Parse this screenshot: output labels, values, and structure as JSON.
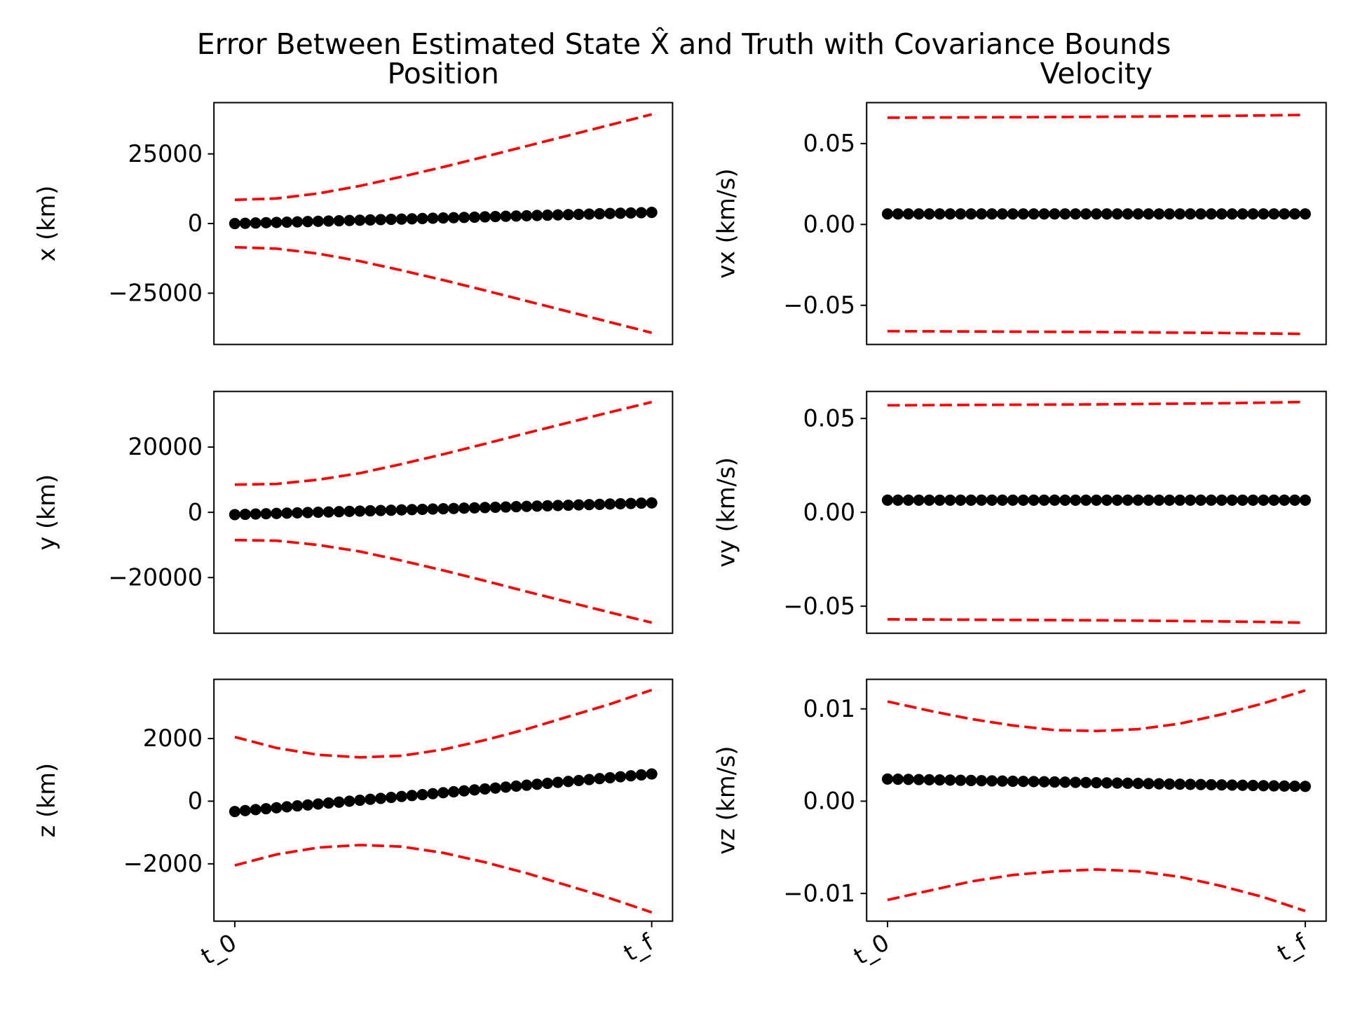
{
  "title": "Error Between Estimated State X̂  and Truth with Covariance Bounds",
  "chart_data": [
    {
      "type": "line",
      "title": "Position",
      "ylabel": "x (km)",
      "xlim": [
        -0.05,
        1.05
      ],
      "ylim": [
        -43400,
        43400
      ],
      "yticks": [
        {
          "value": -25000,
          "label": "−25000"
        },
        0,
        25000
      ],
      "series": [
        {
          "color": "#ff0000",
          "linestyle": "dashed",
          "x": [
            0,
            0.1,
            0.2,
            0.3,
            0.4,
            0.5,
            0.6,
            0.7,
            0.8,
            0.9,
            1
          ],
          "values": [
            8500,
            9000,
            10800,
            13500,
            16800,
            20300,
            24000,
            27800,
            31600,
            35400,
            39200
          ]
        },
        {
          "color": "#ff0000",
          "linestyle": "dashed",
          "x": [
            0,
            0.1,
            0.2,
            0.3,
            0.4,
            0.5,
            0.6,
            0.7,
            0.8,
            0.9,
            1
          ],
          "values": [
            -8500,
            -9000,
            -10800,
            -13500,
            -16800,
            -20300,
            -24000,
            -27800,
            -31600,
            -35400,
            -39200
          ]
        },
        {
          "color": "#000000",
          "marker": "o",
          "x": [
            0,
            0.025,
            0.05,
            0.075,
            0.1,
            0.125,
            0.15,
            0.175,
            0.2,
            0.225,
            0.25,
            0.275,
            0.3,
            0.325,
            0.35,
            0.375,
            0.4,
            0.425,
            0.45,
            0.475,
            0.5,
            0.525,
            0.55,
            0.575,
            0.6,
            0.625,
            0.65,
            0.675,
            0.7,
            0.725,
            0.75,
            0.775,
            0.8,
            0.825,
            0.85,
            0.875,
            0.9,
            0.925,
            0.95,
            0.975,
            1
          ],
          "values": [
            0,
            100,
            200,
            300,
            400,
            500,
            600,
            700,
            800,
            900,
            1000,
            1100,
            1200,
            1300,
            1400,
            1500,
            1600,
            1700,
            1800,
            1900,
            2000,
            2100,
            2200,
            2300,
            2400,
            2500,
            2600,
            2700,
            2800,
            2900,
            3000,
            3100,
            3200,
            3300,
            3400,
            3500,
            3600,
            3700,
            3800,
            3900,
            4000
          ]
        }
      ]
    },
    {
      "type": "line",
      "title": "Velocity",
      "ylabel": "vx (km/s)",
      "xlim": [
        -0.05,
        1.05
      ],
      "ylim": [
        -0.0742,
        0.0753
      ],
      "yticks": [
        {
          "value": -0.05,
          "label": "−0.05"
        },
        {
          "value": 0,
          "label": "0.00"
        },
        0.05
      ],
      "series": [
        {
          "color": "#ff0000",
          "linestyle": "dashed",
          "x": [
            0,
            0.1,
            0.2,
            0.3,
            0.4,
            0.5,
            0.6,
            0.7,
            0.8,
            0.9,
            1
          ],
          "values": [
            0.066,
            0.0661,
            0.0662,
            0.0663,
            0.0664,
            0.0665,
            0.0667,
            0.0669,
            0.0671,
            0.0674,
            0.0677
          ]
        },
        {
          "color": "#ff0000",
          "linestyle": "dashed",
          "x": [
            0,
            0.1,
            0.2,
            0.3,
            0.4,
            0.5,
            0.6,
            0.7,
            0.8,
            0.9,
            1
          ],
          "values": [
            -0.066,
            -0.0661,
            -0.0662,
            -0.0663,
            -0.0664,
            -0.0665,
            -0.0667,
            -0.0669,
            -0.0671,
            -0.0674,
            -0.0677
          ]
        },
        {
          "color": "#000000",
          "marker": "o",
          "x": [
            0,
            0.025,
            0.05,
            0.075,
            0.1,
            0.125,
            0.15,
            0.175,
            0.2,
            0.225,
            0.25,
            0.275,
            0.3,
            0.325,
            0.35,
            0.375,
            0.4,
            0.425,
            0.45,
            0.475,
            0.5,
            0.525,
            0.55,
            0.575,
            0.6,
            0.625,
            0.65,
            0.675,
            0.7,
            0.725,
            0.75,
            0.775,
            0.8,
            0.825,
            0.85,
            0.875,
            0.9,
            0.925,
            0.95,
            0.975,
            1
          ],
          "values": [
            0.0065,
            0.0065,
            0.0065,
            0.0065,
            0.0065,
            0.0065,
            0.0065,
            0.0065,
            0.0065,
            0.0065,
            0.0065,
            0.0065,
            0.0065,
            0.0065,
            0.0065,
            0.0065,
            0.0065,
            0.0065,
            0.0065,
            0.0065,
            0.0065,
            0.0065,
            0.0065,
            0.0065,
            0.0065,
            0.0065,
            0.0065,
            0.0065,
            0.0065,
            0.0065,
            0.0065,
            0.0065,
            0.0065,
            0.0065,
            0.0065,
            0.0065,
            0.0065,
            0.0065,
            0.0065,
            0.0065,
            0.0065
          ]
        }
      ]
    },
    {
      "type": "line",
      "ylabel": "y (km)",
      "xlim": [
        -0.05,
        1.05
      ],
      "ylim": [
        -37070,
        37070
      ],
      "yticks": [
        {
          "value": -20000,
          "label": "−20000"
        },
        0,
        20000
      ],
      "series": [
        {
          "color": "#ff0000",
          "linestyle": "dashed",
          "x": [
            0,
            0.1,
            0.2,
            0.3,
            0.4,
            0.5,
            0.6,
            0.7,
            0.8,
            0.9,
            1
          ],
          "values": [
            8500,
            8700,
            10000,
            12000,
            14800,
            17800,
            21000,
            24300,
            27500,
            30700,
            33800
          ]
        },
        {
          "color": "#ff0000",
          "linestyle": "dashed",
          "x": [
            0,
            0.1,
            0.2,
            0.3,
            0.4,
            0.5,
            0.6,
            0.7,
            0.8,
            0.9,
            1
          ],
          "values": [
            -8500,
            -8700,
            -10000,
            -12000,
            -14800,
            -17800,
            -21000,
            -24300,
            -27500,
            -30700,
            -33800
          ]
        },
        {
          "color": "#000000",
          "marker": "o",
          "x": [
            0,
            0.025,
            0.05,
            0.075,
            0.1,
            0.125,
            0.15,
            0.175,
            0.2,
            0.225,
            0.25,
            0.275,
            0.3,
            0.325,
            0.35,
            0.375,
            0.4,
            0.425,
            0.45,
            0.475,
            0.5,
            0.525,
            0.55,
            0.575,
            0.6,
            0.625,
            0.65,
            0.675,
            0.7,
            0.725,
            0.75,
            0.775,
            0.8,
            0.825,
            0.85,
            0.875,
            0.9,
            0.925,
            0.95,
            0.975,
            1
          ],
          "values": [
            -700,
            -610,
            -520,
            -430,
            -340,
            -250,
            -160,
            -70,
            20,
            110,
            200,
            290,
            380,
            470,
            560,
            650,
            740,
            830,
            920,
            1010,
            1100,
            1190,
            1280,
            1370,
            1460,
            1550,
            1640,
            1730,
            1820,
            1910,
            2000,
            2090,
            2180,
            2270,
            2360,
            2450,
            2540,
            2630,
            2720,
            2810,
            2900
          ]
        }
      ]
    },
    {
      "type": "line",
      "ylabel": "vy (km/s)",
      "xlim": [
        -0.05,
        1.05
      ],
      "ylim": [
        -0.0644,
        0.0644
      ],
      "yticks": [
        {
          "value": -0.05,
          "label": "−0.05"
        },
        {
          "value": 0,
          "label": "0.00"
        },
        0.05
      ],
      "series": [
        {
          "color": "#ff0000",
          "linestyle": "dashed",
          "x": [
            0,
            0.1,
            0.2,
            0.3,
            0.4,
            0.5,
            0.6,
            0.7,
            0.8,
            0.9,
            1
          ],
          "values": [
            0.057,
            0.0571,
            0.0572,
            0.0573,
            0.0574,
            0.0575,
            0.0577,
            0.0579,
            0.0581,
            0.0584,
            0.0588
          ]
        },
        {
          "color": "#ff0000",
          "linestyle": "dashed",
          "x": [
            0,
            0.1,
            0.2,
            0.3,
            0.4,
            0.5,
            0.6,
            0.7,
            0.8,
            0.9,
            1
          ],
          "values": [
            -0.057,
            -0.0571,
            -0.0572,
            -0.0573,
            -0.0574,
            -0.0575,
            -0.0577,
            -0.0579,
            -0.0581,
            -0.0584,
            -0.0588
          ]
        },
        {
          "color": "#000000",
          "marker": "o",
          "x": [
            0,
            0.025,
            0.05,
            0.075,
            0.1,
            0.125,
            0.15,
            0.175,
            0.2,
            0.225,
            0.25,
            0.275,
            0.3,
            0.325,
            0.35,
            0.375,
            0.4,
            0.425,
            0.45,
            0.475,
            0.5,
            0.525,
            0.55,
            0.575,
            0.6,
            0.625,
            0.65,
            0.675,
            0.7,
            0.725,
            0.75,
            0.775,
            0.8,
            0.825,
            0.85,
            0.875,
            0.9,
            0.925,
            0.95,
            0.975,
            1
          ],
          "values": [
            0.0065,
            0.0065,
            0.0065,
            0.0065,
            0.0065,
            0.0065,
            0.0065,
            0.0065,
            0.0065,
            0.0065,
            0.0065,
            0.0065,
            0.0065,
            0.0065,
            0.0065,
            0.0065,
            0.0065,
            0.0065,
            0.0065,
            0.0065,
            0.0065,
            0.0065,
            0.0065,
            0.0065,
            0.0065,
            0.0065,
            0.0065,
            0.0065,
            0.0065,
            0.0065,
            0.0065,
            0.0065,
            0.0065,
            0.0065,
            0.0065,
            0.0065,
            0.0065,
            0.0065,
            0.0065,
            0.0065,
            0.0065
          ]
        }
      ]
    },
    {
      "type": "line",
      "ylabel": "z (km)",
      "xlim": [
        -0.05,
        1.05
      ],
      "ylim": [
        -3830,
        3890
      ],
      "yticks": [
        {
          "value": -2000,
          "label": "−2000"
        },
        0,
        2000
      ],
      "xticks": [
        {
          "value": 0,
          "label": "t_0"
        },
        {
          "value": 1,
          "label": "t_f"
        }
      ],
      "series": [
        {
          "color": "#ff0000",
          "linestyle": "dashed",
          "x": [
            0,
            0.1,
            0.2,
            0.3,
            0.4,
            0.5,
            0.6,
            0.7,
            0.8,
            0.9,
            1
          ],
          "values": [
            2050,
            1700,
            1480,
            1400,
            1450,
            1650,
            1950,
            2300,
            2700,
            3100,
            3550
          ]
        },
        {
          "color": "#ff0000",
          "linestyle": "dashed",
          "x": [
            0,
            0.1,
            0.2,
            0.3,
            0.4,
            0.5,
            0.6,
            0.7,
            0.8,
            0.9,
            1
          ],
          "values": [
            -2050,
            -1700,
            -1480,
            -1400,
            -1450,
            -1650,
            -1950,
            -2300,
            -2700,
            -3100,
            -3550
          ]
        },
        {
          "color": "#000000",
          "marker": "o",
          "x": [
            0,
            0.025,
            0.05,
            0.075,
            0.1,
            0.125,
            0.15,
            0.175,
            0.2,
            0.225,
            0.25,
            0.275,
            0.3,
            0.325,
            0.35,
            0.375,
            0.4,
            0.425,
            0.45,
            0.475,
            0.5,
            0.525,
            0.55,
            0.575,
            0.6,
            0.625,
            0.65,
            0.675,
            0.7,
            0.725,
            0.75,
            0.775,
            0.8,
            0.825,
            0.85,
            0.875,
            0.9,
            0.925,
            0.95,
            0.975,
            1
          ],
          "values": [
            -330,
            -300,
            -270,
            -240,
            -210,
            -180,
            -150,
            -120,
            -90,
            -60,
            -30,
            0,
            30,
            60,
            90,
            120,
            150,
            180,
            210,
            240,
            270,
            300,
            330,
            360,
            390,
            420,
            450,
            480,
            510,
            540,
            570,
            600,
            630,
            660,
            690,
            720,
            750,
            780,
            810,
            840,
            870
          ]
        }
      ]
    },
    {
      "type": "line",
      "ylabel": "vz (km/s)",
      "xlim": [
        -0.05,
        1.05
      ],
      "ylim": [
        -0.013,
        0.0132
      ],
      "yticks": [
        {
          "value": -0.01,
          "label": "−0.01"
        },
        {
          "value": 0,
          "label": "0.00"
        },
        0.01
      ],
      "xticks": [
        {
          "value": 0,
          "label": "t_0"
        },
        {
          "value": 1,
          "label": "t_f"
        }
      ],
      "series": [
        {
          "color": "#ff0000",
          "linestyle": "dashed",
          "x": [
            0,
            0.1,
            0.2,
            0.3,
            0.4,
            0.5,
            0.6,
            0.7,
            0.8,
            0.9,
            1
          ],
          "values": [
            0.0108,
            0.0098,
            0.0089,
            0.0082,
            0.0077,
            0.0076,
            0.0078,
            0.0084,
            0.0094,
            0.0106,
            0.012
          ]
        },
        {
          "color": "#ff0000",
          "linestyle": "dashed",
          "x": [
            0,
            0.1,
            0.2,
            0.3,
            0.4,
            0.5,
            0.6,
            0.7,
            0.8,
            0.9,
            1
          ],
          "values": [
            -0.0107,
            -0.0097,
            -0.0087,
            -0.008,
            -0.0076,
            -0.0074,
            -0.0076,
            -0.0082,
            -0.0092,
            -0.0104,
            -0.0119
          ]
        },
        {
          "color": "#000000",
          "marker": "o",
          "x": [
            0,
            0.025,
            0.05,
            0.075,
            0.1,
            0.125,
            0.15,
            0.175,
            0.2,
            0.225,
            0.25,
            0.275,
            0.3,
            0.325,
            0.35,
            0.375,
            0.4,
            0.425,
            0.45,
            0.475,
            0.5,
            0.525,
            0.55,
            0.575,
            0.6,
            0.625,
            0.65,
            0.675,
            0.7,
            0.725,
            0.75,
            0.775,
            0.8,
            0.825,
            0.85,
            0.875,
            0.9,
            0.925,
            0.95,
            0.975,
            1
          ],
          "values": [
            0.0024,
            0.00238,
            0.00236,
            0.00234,
            0.00232,
            0.0023,
            0.00228,
            0.00226,
            0.00224,
            0.00222,
            0.0022,
            0.00218,
            0.00216,
            0.00214,
            0.00212,
            0.0021,
            0.00208,
            0.00206,
            0.00204,
            0.00202,
            0.002,
            0.00198,
            0.00196,
            0.00194,
            0.00192,
            0.0019,
            0.00188,
            0.00186,
            0.00184,
            0.00182,
            0.0018,
            0.00178,
            0.00176,
            0.00174,
            0.00172,
            0.0017,
            0.00168,
            0.00166,
            0.00164,
            0.00162,
            0.0016
          ]
        }
      ]
    }
  ]
}
